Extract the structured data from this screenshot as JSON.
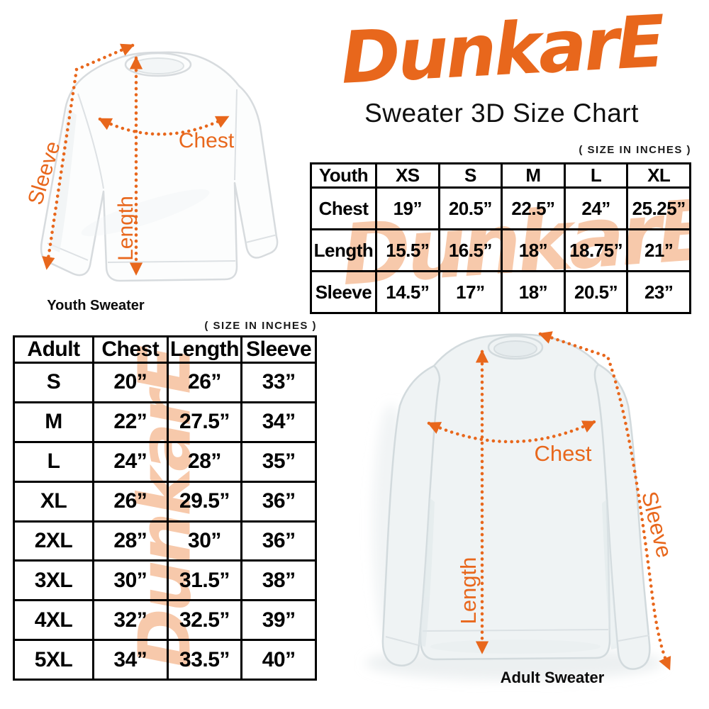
{
  "brand": {
    "logo_text": "DunkarE",
    "subtitle": "Sweater 3D Size Chart",
    "accent_color": "#E8671C",
    "watermark_color": "#F7C9AB"
  },
  "youth_figure": {
    "caption": "Youth Sweater",
    "labels": {
      "sleeve": "Sleeve",
      "length": "Length",
      "chest": "Chest"
    }
  },
  "adult_figure": {
    "caption": "Adult Sweater",
    "labels": {
      "sleeve": "Sleeve",
      "length": "Length",
      "chest": "Chest"
    }
  },
  "youth_table": {
    "size_note": "( SIZE IN INCHES )",
    "header": [
      "Youth",
      "XS",
      "S",
      "M",
      "L",
      "XL"
    ],
    "rows": [
      [
        "Chest",
        "19”",
        "20.5”",
        "22.5”",
        "24”",
        "25.25”"
      ],
      [
        "Length",
        "15.5”",
        "16.5”",
        "18”",
        "18.75”",
        "21”"
      ],
      [
        "Sleeve",
        "14.5”",
        "17”",
        "18”",
        "20.5”",
        "23”"
      ]
    ]
  },
  "adult_table": {
    "size_note": "( SIZE IN INCHES )",
    "header": [
      "Adult",
      "Chest",
      "Length",
      "Sleeve"
    ],
    "rows": [
      [
        "S",
        "20”",
        "26”",
        "33”"
      ],
      [
        "M",
        "22”",
        "27.5”",
        "34”"
      ],
      [
        "L",
        "24”",
        "28”",
        "35”"
      ],
      [
        "XL",
        "26”",
        "29.5”",
        "36”"
      ],
      [
        "2XL",
        "28”",
        "30”",
        "36”"
      ],
      [
        "3XL",
        "30”",
        "31.5”",
        "38”"
      ],
      [
        "4XL",
        "32”",
        "32.5”",
        "39”"
      ],
      [
        "5XL",
        "34”",
        "33.5”",
        "40”"
      ]
    ]
  },
  "chart_data": [
    {
      "type": "table",
      "title": "Youth Sweater 3D Size Chart (size in inches)",
      "columns": [
        "Youth",
        "XS",
        "S",
        "M",
        "L",
        "XL"
      ],
      "rows": [
        [
          "Chest",
          19,
          20.5,
          22.5,
          24,
          25.25
        ],
        [
          "Length",
          15.5,
          16.5,
          18,
          18.75,
          21
        ],
        [
          "Sleeve",
          14.5,
          17,
          18,
          20.5,
          23
        ]
      ]
    },
    {
      "type": "table",
      "title": "Adult Sweater 3D Size Chart (size in inches)",
      "columns": [
        "Adult",
        "Chest",
        "Length",
        "Sleeve"
      ],
      "rows": [
        [
          "S",
          20,
          26,
          33
        ],
        [
          "M",
          22,
          27.5,
          34
        ],
        [
          "L",
          24,
          28,
          35
        ],
        [
          "XL",
          26,
          29.5,
          36
        ],
        [
          "2XL",
          28,
          30,
          36
        ],
        [
          "3XL",
          30,
          31.5,
          38
        ],
        [
          "4XL",
          32,
          32.5,
          39
        ],
        [
          "5XL",
          34,
          33.5,
          40
        ]
      ]
    }
  ]
}
